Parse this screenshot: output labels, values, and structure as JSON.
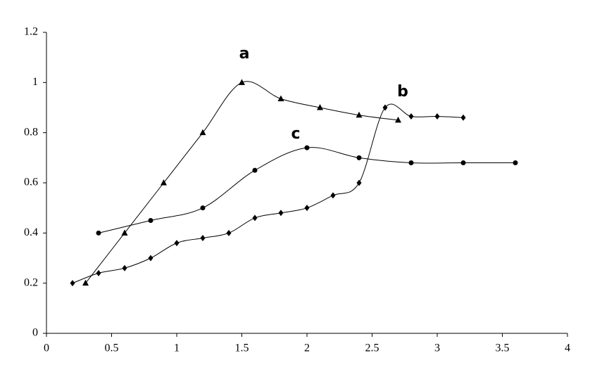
{
  "chart_data": {
    "type": "line",
    "xlim": [
      0,
      4
    ],
    "xticks": [
      0,
      0.5,
      1,
      1.5,
      2,
      2.5,
      3,
      3.5,
      4
    ],
    "ylim": [
      0,
      1.2
    ],
    "yticks": [
      0,
      0.2,
      0.4,
      0.6,
      0.8,
      1,
      1.2
    ],
    "grid": false,
    "series": [
      {
        "name": "a",
        "color": "#000000",
        "marker": "triangle",
        "x": [
          0.3,
          0.6,
          0.9,
          1.2,
          1.5,
          1.8,
          2.1,
          2.4,
          2.7
        ],
        "values": [
          0.2,
          0.4,
          0.6,
          0.8,
          1.0,
          0.935,
          0.9,
          0.87,
          0.85
        ]
      },
      {
        "name": "b",
        "color": "#000000",
        "marker": "diamond",
        "x": [
          0.2,
          0.4,
          0.6,
          0.8,
          1.0,
          1.2,
          1.4,
          1.6,
          1.8,
          2.0,
          2.2,
          2.4,
          2.6,
          2.8,
          3.0,
          3.2
        ],
        "values": [
          0.2,
          0.24,
          0.26,
          0.3,
          0.36,
          0.38,
          0.4,
          0.46,
          0.48,
          0.5,
          0.55,
          0.6,
          0.9,
          0.865,
          0.865,
          0.86
        ]
      },
      {
        "name": "c",
        "color": "#000000",
        "marker": "circle",
        "x": [
          0.4,
          0.8,
          1.2,
          1.6,
          2.0,
          2.4,
          2.8,
          3.2,
          3.6
        ],
        "values": [
          0.4,
          0.45,
          0.5,
          0.65,
          0.74,
          0.7,
          0.68,
          0.68,
          0.68
        ]
      }
    ]
  }
}
